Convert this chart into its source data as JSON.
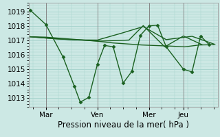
{
  "bg_color": "#cce8e4",
  "grid_major_color": "#a8d4ce",
  "line_color": "#1a6020",
  "xlabel": "Pression niveau de la mer( hPa )",
  "ylim": [
    1012.4,
    1019.6
  ],
  "yticks": [
    1013,
    1014,
    1015,
    1016,
    1017,
    1018,
    1019
  ],
  "xtick_labels": [
    "Mar",
    "Ven",
    "Mer",
    "Jeu"
  ],
  "xtick_hours": [
    24,
    96,
    168,
    216
  ],
  "xlim": [
    0,
    264
  ],
  "s1_x": [
    2,
    24,
    48,
    64,
    72,
    84,
    96,
    106,
    118,
    132,
    144,
    156,
    168,
    180,
    192,
    216,
    228,
    240,
    252
  ],
  "s1_y": [
    1019.1,
    1018.1,
    1015.85,
    1013.8,
    1012.73,
    1013.05,
    1015.35,
    1016.65,
    1016.55,
    1014.05,
    1014.85,
    1017.35,
    1018.0,
    1018.05,
    1016.55,
    1015.0,
    1014.82,
    1017.3,
    1016.7
  ],
  "s2_x": [
    2,
    24,
    50,
    74,
    98,
    118,
    138,
    158,
    178,
    198,
    218,
    238,
    258
  ],
  "s2_y": [
    1017.25,
    1017.22,
    1017.12,
    1017.03,
    1016.93,
    1016.82,
    1016.75,
    1016.68,
    1016.64,
    1016.6,
    1016.55,
    1016.68,
    1016.7
  ],
  "s3_x": [
    2,
    36,
    66,
    96,
    130,
    160,
    192,
    228,
    260
  ],
  "s3_y": [
    1017.25,
    1017.12,
    1017.03,
    1017.02,
    1017.5,
    1017.95,
    1017.05,
    1017.28,
    1016.72
  ],
  "s4_x": [
    2,
    38,
    72,
    100,
    140,
    160,
    190,
    216,
    242
  ],
  "s4_y": [
    1017.25,
    1017.1,
    1017.02,
    1016.95,
    1017.02,
    1018.02,
    1016.55,
    1017.3,
    1016.7
  ],
  "vline_hours": [
    24,
    96,
    168,
    216
  ],
  "ms": 2.5,
  "lw": 1.0,
  "label_fontsize": 7.5,
  "xlabel_fontsize": 8.5
}
